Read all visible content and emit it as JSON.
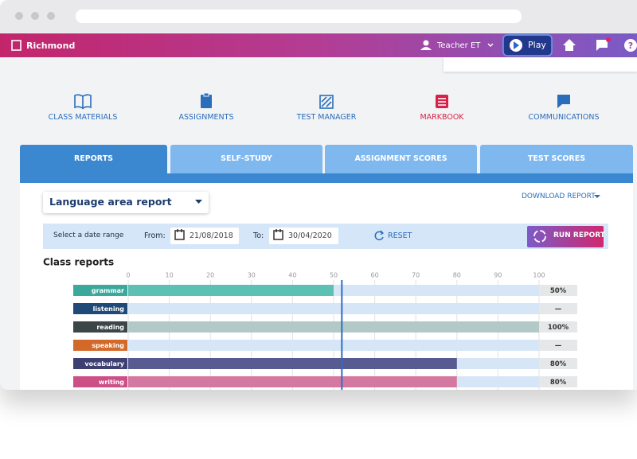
{
  "header": {
    "brand": "Richmond",
    "user": "Teacher ET",
    "play": "Play"
  },
  "nav": [
    "CLASS MATERIALS",
    "ASSIGNMENTS",
    "TEST MANAGER",
    "MARKBOOK",
    "COMMUNICATIONS"
  ],
  "tabs": [
    "REPORTS",
    "SELF-STUDY",
    "ASSIGNMENT SCORES",
    "TEST SCORES"
  ],
  "report_selector": "Language area report",
  "download": "DOWNLOAD REPORT",
  "filter": {
    "prompt": "Select a date range",
    "from_label": "From:",
    "from": "21/08/2018",
    "to_label": "To:",
    "to": "30/04/2020",
    "reset": "RESET",
    "run": "RUN REPORT"
  },
  "chart_data": {
    "type": "bar",
    "orientation": "horizontal",
    "title": "Class reports",
    "categories": [
      "grammar",
      "listening",
      "reading",
      "speaking",
      "vocabulary",
      "writing"
    ],
    "values": [
      50,
      null,
      100,
      null,
      80,
      80
    ],
    "value_labels": [
      "50%",
      "—",
      "100%",
      "—",
      "80%",
      "80%"
    ],
    "label_colors": [
      "#3aa99b",
      "#1f4a78",
      "#3c4647",
      "#d2692a",
      "#3e3f72",
      "#cc4f86"
    ],
    "bar_colors": [
      "#5cc1b3",
      "#1f4a78",
      "#b2c9c8",
      "#d2692a",
      "#585a92",
      "#d578a1"
    ],
    "track_color": "#d6e6f7",
    "marker": 52,
    "xlim": [
      0,
      100
    ],
    "xticks": [
      0,
      10,
      20,
      30,
      40,
      50,
      60,
      70,
      80,
      90,
      100
    ],
    "grid": true
  }
}
